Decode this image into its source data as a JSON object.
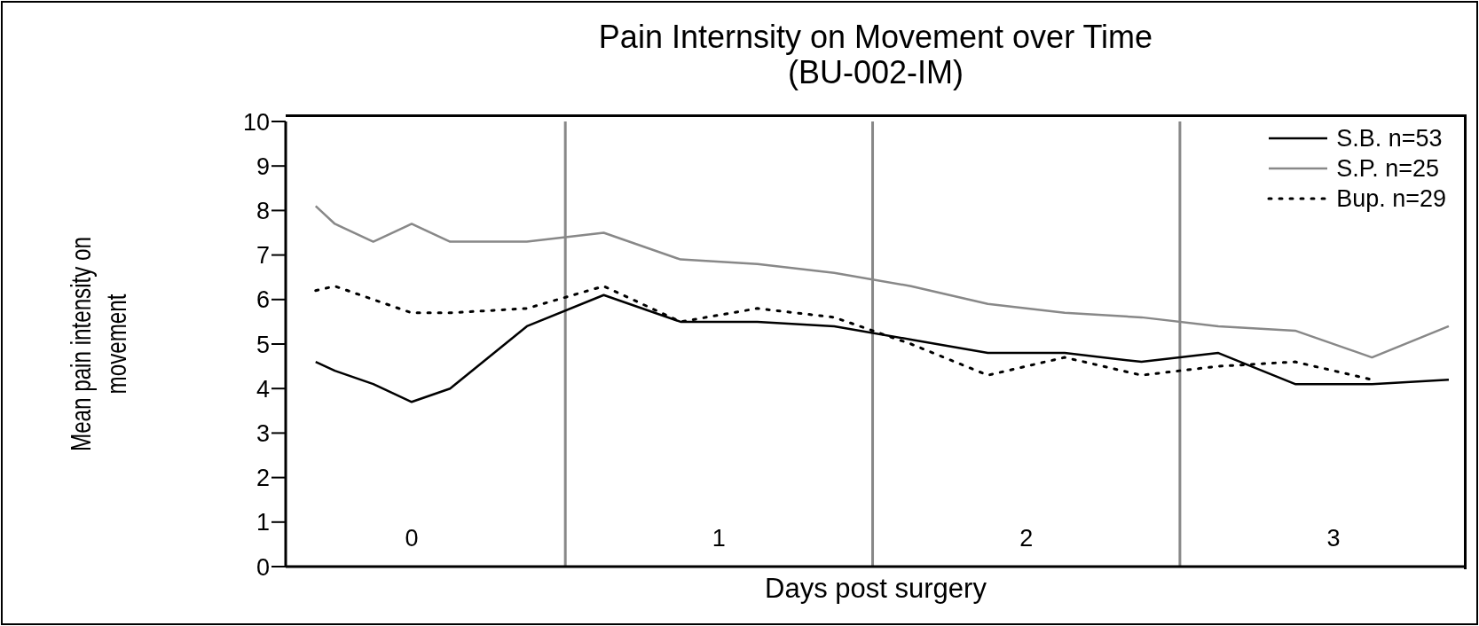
{
  "chart_data": {
    "type": "line",
    "title": "Pain Internsity on Movement over Time",
    "subtitle": "(BU-002-IM)",
    "xlabel": "Days post surgery",
    "ylabel": "Mean pain intensity on movement",
    "x": [
      0.1875,
      0.25,
      0.375,
      0.5,
      0.625,
      0.875,
      1.125,
      1.375,
      1.625,
      1.875,
      2.125,
      2.375,
      2.625,
      2.875,
      3.125,
      3.375,
      3.625,
      3.875
    ],
    "xlim": [
      0.09,
      3.93
    ],
    "xticks": [
      {
        "value": 0.5,
        "label": "0"
      },
      {
        "value": 1.5,
        "label": "1"
      },
      {
        "value": 2.5,
        "label": "2"
      },
      {
        "value": 3.5,
        "label": "3"
      }
    ],
    "ylim": [
      0,
      10
    ],
    "yticks": [
      0,
      1,
      2,
      3,
      4,
      5,
      6,
      7,
      8,
      9,
      10
    ],
    "ref_lines": [
      {
        "axis": "x",
        "value": 1,
        "color": "#888888"
      },
      {
        "axis": "x",
        "value": 2,
        "color": "#888888"
      },
      {
        "axis": "x",
        "value": 3,
        "color": "#888888"
      }
    ],
    "series": [
      {
        "name": "S.B. n=53",
        "color": "#000000",
        "line_style": "solid",
        "values": [
          4.6,
          4.4,
          4.1,
          3.7,
          4.0,
          5.4,
          6.1,
          5.5,
          5.5,
          5.4,
          5.1,
          4.8,
          4.8,
          4.6,
          4.8,
          4.1,
          4.1,
          4.2
        ]
      },
      {
        "name": "S.P. n=25",
        "color": "#888888",
        "line_style": "solid",
        "values": [
          8.1,
          7.7,
          7.3,
          7.7,
          7.3,
          7.3,
          7.5,
          6.9,
          6.8,
          6.6,
          6.3,
          5.9,
          5.7,
          5.6,
          5.4,
          5.3,
          4.7,
          5.4
        ]
      },
      {
        "name": "Bup. n=29",
        "color": "#000000",
        "line_style": "dotted",
        "values": [
          6.2,
          6.3,
          6.0,
          5.7,
          5.7,
          5.8,
          6.3,
          5.5,
          5.8,
          5.6,
          5.0,
          4.3,
          4.7,
          4.3,
          4.5,
          4.6,
          4.2,
          null
        ]
      }
    ],
    "legend": "top right",
    "grid": false,
    "marker": "none"
  }
}
